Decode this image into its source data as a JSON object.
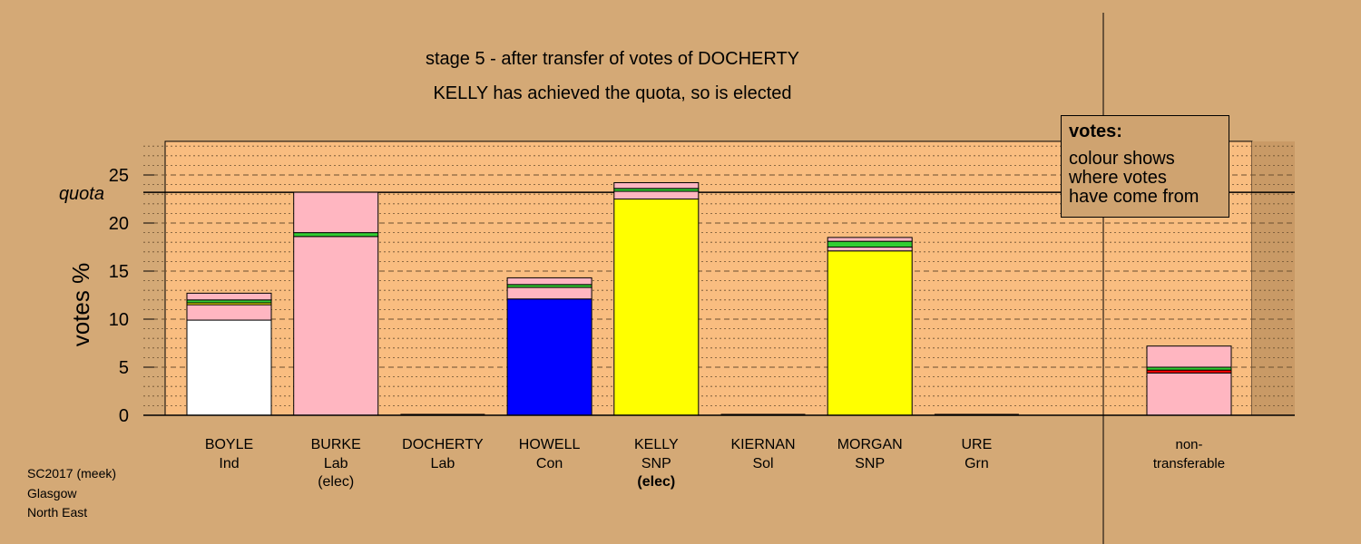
{
  "chart_data": {
    "type": "bar",
    "stacked": true,
    "title": "stage 5 - after transfer of votes of DOCHERTY",
    "subtitle": "KELLY has achieved the quota, so is elected",
    "ylabel": "votes %",
    "ylim": [
      0,
      28.5
    ],
    "yticks": [
      0,
      5,
      10,
      15,
      20,
      25
    ],
    "quota": 23.2,
    "quota_label": "quota",
    "grid": "dotted minor every 1, dashed major every 5",
    "categories": [
      {
        "name": "BOYLE",
        "party": "Ind",
        "note": ""
      },
      {
        "name": "BURKE",
        "party": "Lab",
        "note": "(elec)"
      },
      {
        "name": "DOCHERTY",
        "party": "Lab",
        "note": ""
      },
      {
        "name": "HOWELL",
        "party": "Con",
        "note": ""
      },
      {
        "name": "KELLY",
        "party": "SNP",
        "note": "(elec)"
      },
      {
        "name": "KIERNAN",
        "party": "Sol",
        "note": ""
      },
      {
        "name": "MORGAN",
        "party": "SNP",
        "note": ""
      },
      {
        "name": "URE",
        "party": "Grn",
        "note": ""
      }
    ],
    "nontransferable_label": [
      "non-",
      "transferable"
    ],
    "stacks": [
      [
        {
          "color": "#ffffff",
          "value": 9.9
        },
        {
          "color": "#ffb6c1",
          "value": 1.6
        },
        {
          "color": "#ffff00",
          "value": 0.2
        },
        {
          "color": "#32cd32",
          "value": 0.3
        },
        {
          "color": "#ffb6c1",
          "value": 0.7
        }
      ],
      [
        {
          "color": "#ffb6c1",
          "value": 18.6
        },
        {
          "color": "#32cd32",
          "value": 0.4
        },
        {
          "color": "#ffb6c1",
          "value": 4.2
        }
      ],
      [],
      [
        {
          "color": "#0000ff",
          "value": 12.1
        },
        {
          "color": "#ffb6c1",
          "value": 1.2
        },
        {
          "color": "#32cd32",
          "value": 0.3
        },
        {
          "color": "#ffb6c1",
          "value": 0.7
        }
      ],
      [
        {
          "color": "#ffff00",
          "value": 22.5
        },
        {
          "color": "#ffb6c1",
          "value": 0.8
        },
        {
          "color": "#32cd32",
          "value": 0.3
        },
        {
          "color": "#ffb6c1",
          "value": 0.6
        }
      ],
      [],
      [
        {
          "color": "#ffff00",
          "value": 17.1
        },
        {
          "color": "#ffb6c1",
          "value": 0.4
        },
        {
          "color": "#32cd32",
          "value": 0.6
        },
        {
          "color": "#ffb6c1",
          "value": 0.4
        }
      ],
      []
    ],
    "nontransferable_stack": [
      {
        "color": "#ffb6c1",
        "value": 4.4
      },
      {
        "color": "#ff0000",
        "value": 0.3
      },
      {
        "color": "#32cd32",
        "value": 0.3
      },
      {
        "color": "#ffb6c1",
        "value": 2.2
      }
    ],
    "elected_bold": [
      false,
      false,
      false,
      false,
      true,
      false,
      false,
      false
    ]
  },
  "legend": {
    "heading": "votes:",
    "lines": [
      "colour shows",
      "where votes",
      "have come from"
    ]
  },
  "footer": {
    "line1": "SC2017 (meek)",
    "line2": "Glasgow",
    "line3": "North East"
  },
  "colors": {
    "background": "#d4a976",
    "plot_panel": "#f9bd80"
  }
}
